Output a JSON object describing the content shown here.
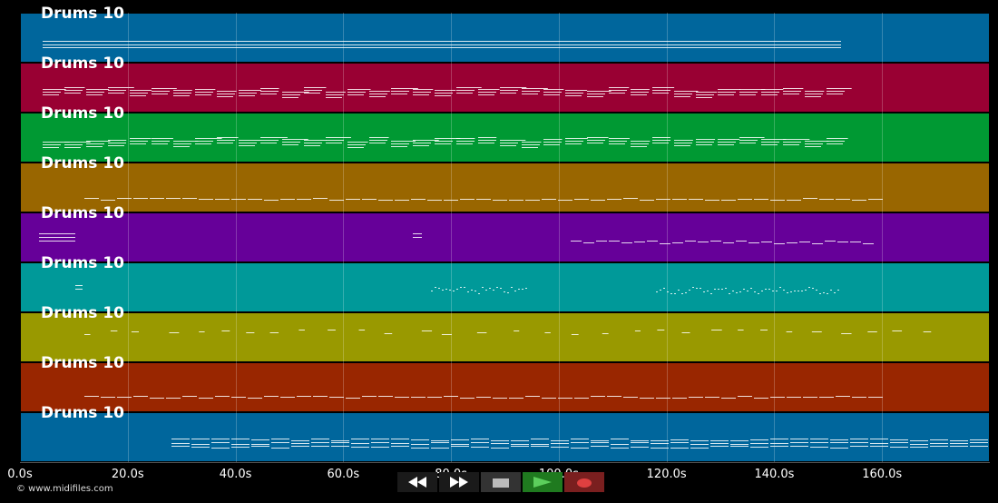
{
  "tracks": [
    {
      "label": "Drums 10",
      "color": "#00669c",
      "density": "dense-uniform"
    },
    {
      "label": "Drums 10",
      "color": "#990033",
      "density": "dense"
    },
    {
      "label": "Drums 10",
      "color": "#009933",
      "density": "dense"
    },
    {
      "label": "Drums 10",
      "color": "#996600",
      "density": "single-line"
    },
    {
      "label": "Drums 10",
      "color": "#660099",
      "density": "sparse"
    },
    {
      "label": "Drums 10",
      "color": "#009999",
      "density": "dotted"
    },
    {
      "label": "Drums 10",
      "color": "#999900",
      "density": "scattered"
    },
    {
      "label": "Drums 10",
      "color": "#992600",
      "density": "single-line"
    },
    {
      "label": "Drums 10",
      "color": "#00669c",
      "density": "multi-line"
    }
  ],
  "timeline": {
    "ticks": [
      "0.0s",
      "20.0s",
      "40.0s",
      "60.0s",
      "80.0s",
      "100.0s",
      "120.0s",
      "140.0s",
      "160.0s"
    ],
    "max_seconds": 180
  },
  "transport": {
    "buttons": [
      {
        "name": "rewind-button",
        "icon": "rewind-icon",
        "bg": "#1a1a1a"
      },
      {
        "name": "fast-forward-button",
        "icon": "fast-forward-icon",
        "bg": "#1a1a1a"
      },
      {
        "name": "stop-button",
        "icon": "stop-icon",
        "bg": "#333333"
      },
      {
        "name": "play-button",
        "icon": "play-icon",
        "bg": "#1f7a1f"
      },
      {
        "name": "record-button",
        "icon": "record-icon",
        "bg": "#7a1f1f"
      }
    ]
  },
  "credit": "© www.midifiles.com"
}
